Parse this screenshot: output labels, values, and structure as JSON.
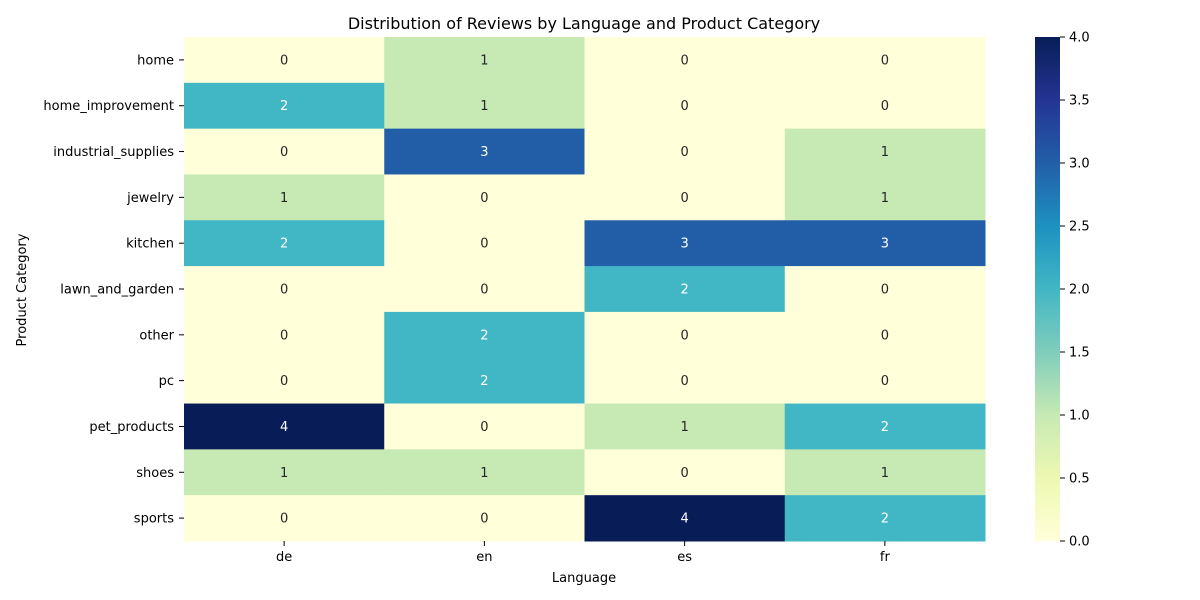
{
  "chart_data": {
    "type": "heatmap",
    "title": "Distribution of Reviews by Language and Product Category",
    "xlabel": "Language",
    "ylabel": "Product Category",
    "x": [
      "de",
      "en",
      "es",
      "fr"
    ],
    "y": [
      "home",
      "home_improvement",
      "industrial_supplies",
      "jewelry",
      "kitchen",
      "lawn_and_garden",
      "other",
      "pc",
      "pet_products",
      "shoes",
      "sports"
    ],
    "values": [
      [
        0,
        1,
        0,
        0
      ],
      [
        2,
        1,
        0,
        0
      ],
      [
        0,
        3,
        0,
        1
      ],
      [
        1,
        0,
        0,
        1
      ],
      [
        2,
        0,
        3,
        3
      ],
      [
        0,
        0,
        2,
        0
      ],
      [
        0,
        2,
        0,
        0
      ],
      [
        0,
        2,
        0,
        0
      ],
      [
        4,
        0,
        1,
        2
      ],
      [
        1,
        1,
        0,
        1
      ],
      [
        0,
        0,
        4,
        2
      ]
    ],
    "colorbar": {
      "min": 0.0,
      "max": 4.0,
      "ticks": [
        "0.0",
        "0.5",
        "1.0",
        "1.5",
        "2.0",
        "2.5",
        "3.0",
        "3.5",
        "4.0"
      ],
      "colormap": "YlGnBu"
    },
    "grid": false
  }
}
